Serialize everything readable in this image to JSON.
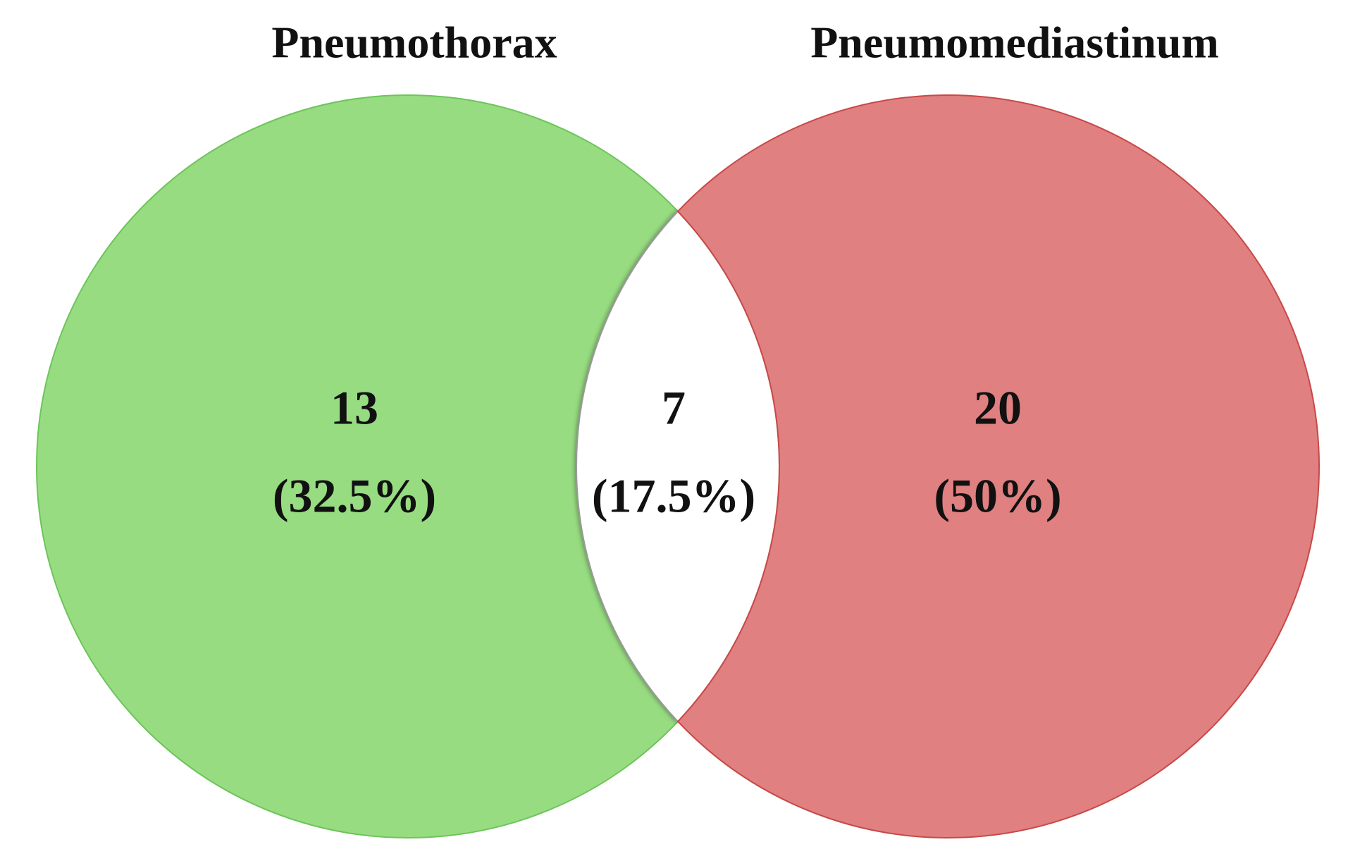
{
  "chart_data": {
    "type": "venn",
    "series": [
      {
        "name": "Pneumothorax",
        "color": "#98dc82"
      },
      {
        "name": "Pneumomediastinum",
        "color": "#e08080"
      }
    ],
    "values": [
      13,
      7,
      20
    ],
    "percentage_labels": [
      "(32.5%)",
      "(17.5%)",
      "(50%)"
    ]
  }
}
